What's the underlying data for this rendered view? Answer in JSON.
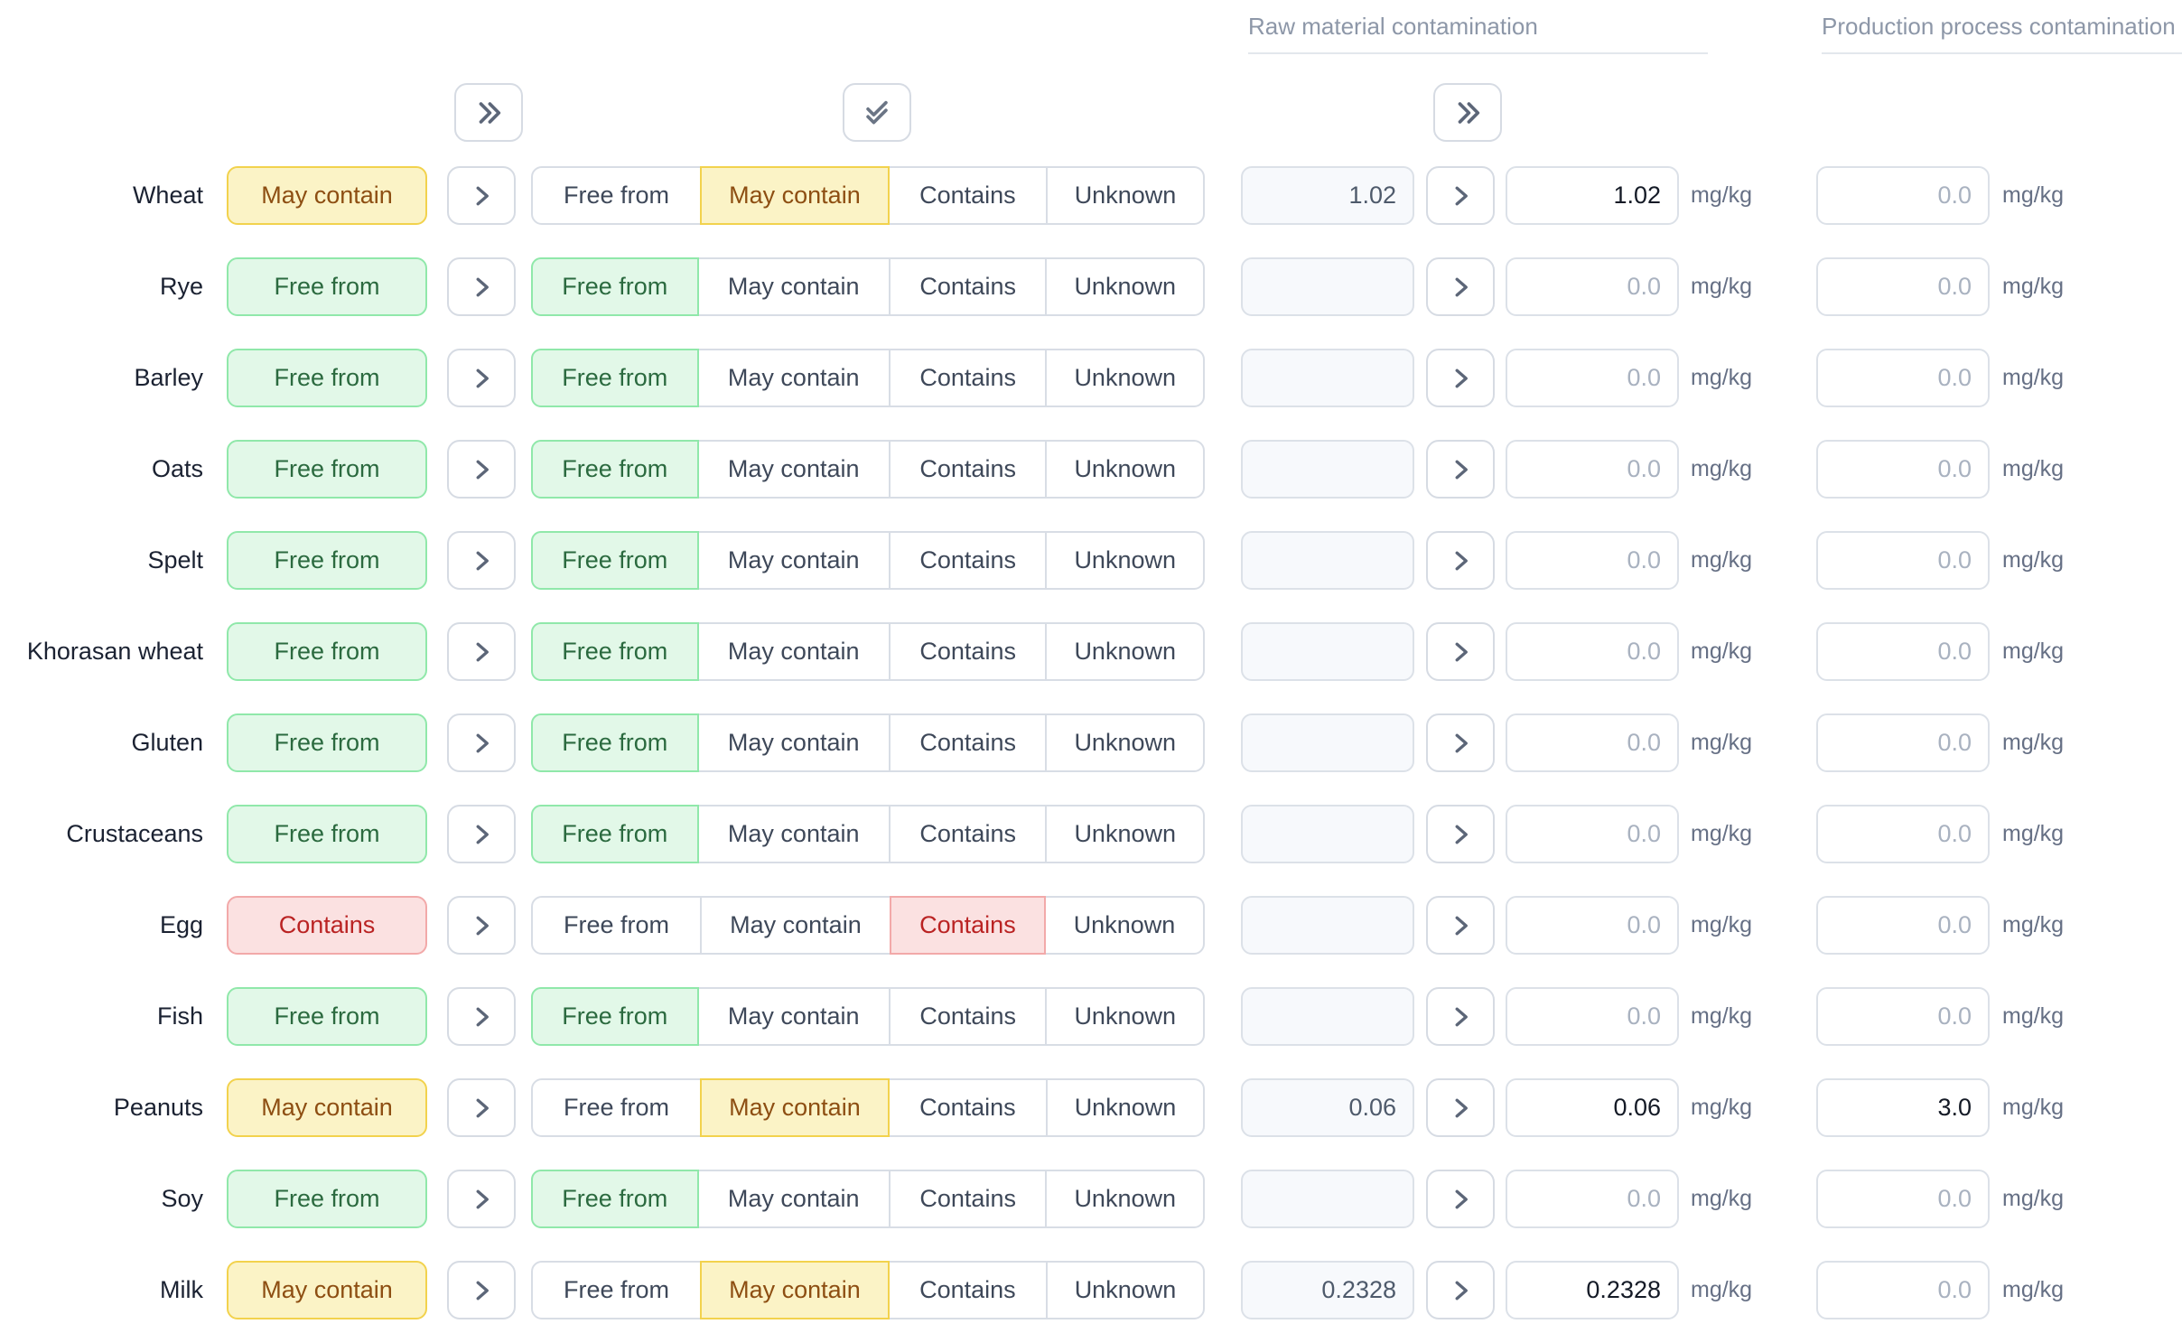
{
  "columns": {
    "raw_header": "Raw material contamination",
    "production_header": "Production process contamination"
  },
  "unit": "mg/kg",
  "segment_options": [
    "Free from",
    "May contain",
    "Contains",
    "Unknown"
  ],
  "toolbar": {
    "expand_status_icon": "chevrons-right",
    "apply_all_icon": "double-check",
    "expand_raw_icon": "chevrons-right",
    "row_copy_icon": "chevron-right"
  },
  "colors": {
    "may_contain": {
      "bg": "#FBF3C6",
      "border": "#F2D24D",
      "text": "#8D4E12"
    },
    "free_from": {
      "bg": "#E2F8E8",
      "border": "#90E8AA",
      "text": "#2B6A3F"
    },
    "contains": {
      "bg": "#FBE1E1",
      "border": "#F2A9A9",
      "text": "#BA2323"
    },
    "control_border": "#D8DDE5"
  },
  "rows": [
    {
      "allergen": "Wheat",
      "status": "May contain",
      "status_key": "may_contain",
      "raw_reference": "1.02",
      "raw_value": "1.02",
      "raw_placeholder": "0.0",
      "production_value": "",
      "production_placeholder": "0.0"
    },
    {
      "allergen": "Rye",
      "status": "Free from",
      "status_key": "free_from",
      "raw_reference": "",
      "raw_value": "",
      "raw_placeholder": "0.0",
      "production_value": "",
      "production_placeholder": "0.0"
    },
    {
      "allergen": "Barley",
      "status": "Free from",
      "status_key": "free_from",
      "raw_reference": "",
      "raw_value": "",
      "raw_placeholder": "0.0",
      "production_value": "",
      "production_placeholder": "0.0"
    },
    {
      "allergen": "Oats",
      "status": "Free from",
      "status_key": "free_from",
      "raw_reference": "",
      "raw_value": "",
      "raw_placeholder": "0.0",
      "production_value": "",
      "production_placeholder": "0.0"
    },
    {
      "allergen": "Spelt",
      "status": "Free from",
      "status_key": "free_from",
      "raw_reference": "",
      "raw_value": "",
      "raw_placeholder": "0.0",
      "production_value": "",
      "production_placeholder": "0.0"
    },
    {
      "allergen": "Khorasan wheat",
      "status": "Free from",
      "status_key": "free_from",
      "raw_reference": "",
      "raw_value": "",
      "raw_placeholder": "0.0",
      "production_value": "",
      "production_placeholder": "0.0"
    },
    {
      "allergen": "Gluten",
      "status": "Free from",
      "status_key": "free_from",
      "raw_reference": "",
      "raw_value": "",
      "raw_placeholder": "0.0",
      "production_value": "",
      "production_placeholder": "0.0"
    },
    {
      "allergen": "Crustaceans",
      "status": "Free from",
      "status_key": "free_from",
      "raw_reference": "",
      "raw_value": "",
      "raw_placeholder": "0.0",
      "production_value": "",
      "production_placeholder": "0.0"
    },
    {
      "allergen": "Egg",
      "status": "Contains",
      "status_key": "contains",
      "raw_reference": "",
      "raw_value": "",
      "raw_placeholder": "0.0",
      "production_value": "",
      "production_placeholder": "0.0"
    },
    {
      "allergen": "Fish",
      "status": "Free from",
      "status_key": "free_from",
      "raw_reference": "",
      "raw_value": "",
      "raw_placeholder": "0.0",
      "production_value": "",
      "production_placeholder": "0.0"
    },
    {
      "allergen": "Peanuts",
      "status": "May contain",
      "status_key": "may_contain",
      "raw_reference": "0.06",
      "raw_value": "0.06",
      "raw_placeholder": "0.0",
      "production_value": "3.0",
      "production_placeholder": "0.0"
    },
    {
      "allergen": "Soy",
      "status": "Free from",
      "status_key": "free_from",
      "raw_reference": "",
      "raw_value": "",
      "raw_placeholder": "0.0",
      "production_value": "",
      "production_placeholder": "0.0"
    },
    {
      "allergen": "Milk",
      "status": "May contain",
      "status_key": "may_contain",
      "raw_reference": "0.2328",
      "raw_value": "0.2328",
      "raw_placeholder": "0.0",
      "production_value": "",
      "production_placeholder": "0.0"
    }
  ]
}
